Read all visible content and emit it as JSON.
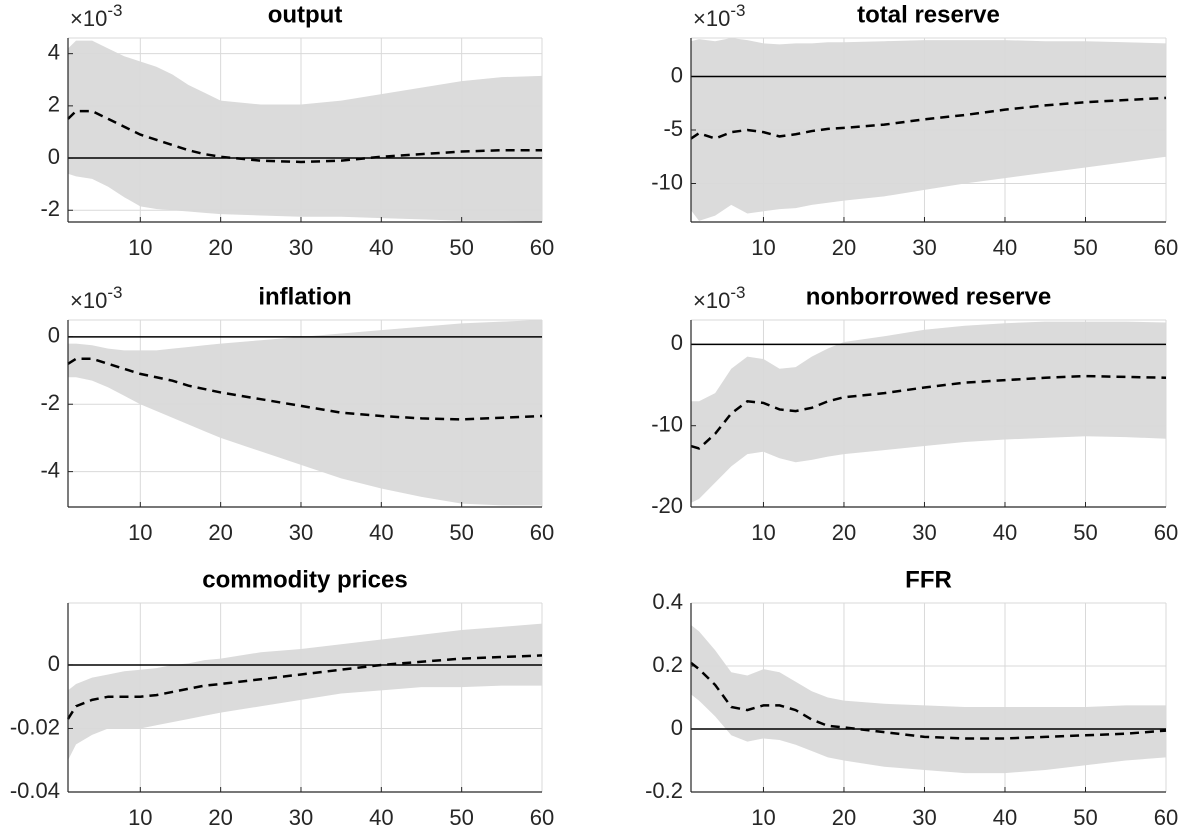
{
  "chart_data": [
    {
      "type": "line",
      "title": "output",
      "multiplier": {
        "base": "×10",
        "exponent": "-3"
      },
      "x": [
        1,
        2,
        4,
        6,
        8,
        10,
        12,
        14,
        16,
        18,
        20,
        25,
        30,
        35,
        40,
        45,
        50,
        55,
        60
      ],
      "values": [
        1.5,
        1.8,
        1.8,
        1.5,
        1.2,
        0.9,
        0.7,
        0.5,
        0.3,
        0.15,
        0.05,
        -0.1,
        -0.15,
        -0.1,
        0.05,
        0.15,
        0.25,
        0.3,
        0.3
      ],
      "upper": [
        4.2,
        4.5,
        4.5,
        4.2,
        3.9,
        3.7,
        3.5,
        3.2,
        2.8,
        2.5,
        2.2,
        2.05,
        2.05,
        2.2,
        2.45,
        2.7,
        2.95,
        3.1,
        3.15
      ],
      "lower": [
        -0.6,
        -0.7,
        -0.8,
        -1.1,
        -1.5,
        -1.85,
        -1.95,
        -2.0,
        -2.05,
        -2.1,
        -2.15,
        -2.2,
        -2.25,
        -2.25,
        -2.3,
        -2.35,
        -2.4,
        -2.4,
        -2.45
      ],
      "xlim": [
        1,
        60
      ],
      "xticks": [
        10,
        20,
        30,
        40,
        50,
        60
      ],
      "ylim": [
        -2.45,
        4.6
      ],
      "yticks": [
        -2,
        0,
        2,
        4
      ],
      "grid": true,
      "hline": 0,
      "color": "#000000",
      "line_style": "dashed",
      "band_color": "#dbdbdb"
    },
    {
      "type": "line",
      "title": "total reserve",
      "multiplier": {
        "base": "×10",
        "exponent": "-3"
      },
      "x": [
        1,
        2,
        4,
        6,
        8,
        10,
        12,
        14,
        16,
        18,
        20,
        25,
        30,
        35,
        40,
        45,
        50,
        55,
        60
      ],
      "values": [
        -5.8,
        -5.3,
        -5.8,
        -5.2,
        -5.0,
        -5.2,
        -5.6,
        -5.4,
        -5.1,
        -4.9,
        -4.8,
        -4.5,
        -4.0,
        -3.6,
        -3.1,
        -2.7,
        -2.4,
        -2.2,
        -2.0
      ],
      "upper": [
        3.3,
        3.5,
        3.3,
        3.6,
        3.4,
        3.1,
        3.0,
        3.1,
        3.1,
        3.2,
        3.2,
        3.3,
        3.4,
        3.4,
        3.4,
        3.3,
        3.3,
        3.2,
        3.1
      ],
      "lower": [
        -12.5,
        -13.5,
        -13.0,
        -12.0,
        -12.8,
        -12.6,
        -12.4,
        -12.3,
        -12.0,
        -11.8,
        -11.6,
        -11.2,
        -10.6,
        -10.0,
        -9.5,
        -9.0,
        -8.5,
        -8.0,
        -7.5
      ],
      "xlim": [
        1,
        60
      ],
      "xticks": [
        10,
        20,
        30,
        40,
        50,
        60
      ],
      "ylim": [
        -13.6,
        3.6
      ],
      "yticks": [
        -10,
        -5,
        0
      ],
      "grid": true,
      "hline": 0,
      "color": "#000000",
      "line_style": "dashed",
      "band_color": "#dbdbdb"
    },
    {
      "type": "line",
      "title": "inflation",
      "multiplier": {
        "base": "×10",
        "exponent": "-3"
      },
      "x": [
        1,
        2,
        4,
        6,
        8,
        10,
        12,
        14,
        16,
        18,
        20,
        25,
        30,
        35,
        40,
        45,
        50,
        55,
        60
      ],
      "values": [
        -0.8,
        -0.65,
        -0.65,
        -0.8,
        -0.95,
        -1.1,
        -1.2,
        -1.3,
        -1.45,
        -1.55,
        -1.65,
        -1.85,
        -2.05,
        -2.25,
        -2.35,
        -2.42,
        -2.45,
        -2.4,
        -2.35
      ],
      "upper": [
        -0.2,
        -0.2,
        -0.25,
        -0.35,
        -0.4,
        -0.4,
        -0.4,
        -0.35,
        -0.3,
        -0.25,
        -0.2,
        -0.1,
        0.0,
        0.1,
        0.2,
        0.3,
        0.4,
        0.45,
        0.5
      ],
      "lower": [
        -1.2,
        -1.2,
        -1.3,
        -1.5,
        -1.75,
        -2.0,
        -2.2,
        -2.4,
        -2.6,
        -2.8,
        -3.0,
        -3.4,
        -3.8,
        -4.2,
        -4.5,
        -4.75,
        -4.95,
        -5.0,
        -5.0
      ],
      "xlim": [
        1,
        60
      ],
      "xticks": [
        10,
        20,
        30,
        40,
        50,
        60
      ],
      "ylim": [
        -5.05,
        0.5
      ],
      "yticks": [
        -4,
        -2,
        0
      ],
      "grid": true,
      "hline": 0,
      "color": "#000000",
      "line_style": "dashed",
      "band_color": "#dbdbdb"
    },
    {
      "type": "line",
      "title": "nonborrowed reserve",
      "multiplier": {
        "base": "×10",
        "exponent": "-3"
      },
      "x": [
        1,
        2,
        4,
        6,
        8,
        10,
        12,
        14,
        16,
        18,
        20,
        25,
        30,
        35,
        40,
        45,
        50,
        55,
        60
      ],
      "values": [
        -12.5,
        -12.8,
        -11,
        -8.5,
        -7.0,
        -7.2,
        -8.0,
        -8.2,
        -7.8,
        -7.0,
        -6.5,
        -6.0,
        -5.3,
        -4.7,
        -4.4,
        -4.1,
        -3.9,
        -4.0,
        -4.1
      ],
      "upper": [
        -7,
        -7,
        -6,
        -3,
        -1.5,
        -1.8,
        -3,
        -2.8,
        -1.5,
        -0.5,
        0.3,
        1.0,
        1.8,
        2.3,
        2.6,
        2.8,
        2.8,
        2.8,
        2.7
      ],
      "lower": [
        -19.5,
        -19,
        -17,
        -15,
        -13.5,
        -13.2,
        -14,
        -14.5,
        -14.2,
        -13.8,
        -13.5,
        -13,
        -12.5,
        -12,
        -11.7,
        -11.5,
        -11.3,
        -11.4,
        -11.6
      ],
      "xlim": [
        1,
        60
      ],
      "xticks": [
        10,
        20,
        30,
        40,
        50,
        60
      ],
      "ylim": [
        -20,
        3
      ],
      "yticks": [
        -20,
        -10,
        0
      ],
      "grid": true,
      "hline": 0,
      "color": "#000000",
      "line_style": "dashed",
      "band_color": "#dbdbdb"
    },
    {
      "type": "line",
      "title": "commodity prices",
      "x": [
        1,
        2,
        4,
        6,
        8,
        10,
        12,
        14,
        16,
        18,
        20,
        25,
        30,
        35,
        40,
        45,
        50,
        55,
        60
      ],
      "values": [
        -0.017,
        -0.013,
        -0.011,
        -0.01,
        -0.01,
        -0.01,
        -0.0095,
        -0.0085,
        -0.0075,
        -0.0065,
        -0.006,
        -0.0045,
        -0.003,
        -0.0015,
        0.0,
        0.001,
        0.002,
        0.0025,
        0.003
      ],
      "upper": [
        -0.008,
        -0.006,
        -0.004,
        -0.003,
        -0.002,
        -0.0015,
        -0.001,
        0.0,
        0.0005,
        0.0015,
        0.002,
        0.004,
        0.005,
        0.0065,
        0.008,
        0.0095,
        0.011,
        0.012,
        0.013
      ],
      "lower": [
        -0.03,
        -0.025,
        -0.022,
        -0.02,
        -0.02,
        -0.02,
        -0.019,
        -0.018,
        -0.017,
        -0.016,
        -0.015,
        -0.013,
        -0.011,
        -0.009,
        -0.008,
        -0.007,
        -0.007,
        -0.0065,
        -0.0065
      ],
      "xlim": [
        1,
        60
      ],
      "xticks": [
        10,
        20,
        30,
        40,
        50,
        60
      ],
      "ylim": [
        -0.04,
        0.0195
      ],
      "yticks": [
        -0.04,
        -0.02,
        0
      ],
      "grid": true,
      "hline": 0,
      "color": "#000000",
      "line_style": "dashed",
      "band_color": "#dbdbdb"
    },
    {
      "type": "line",
      "title": "FFR",
      "x": [
        1,
        2,
        4,
        6,
        8,
        10,
        12,
        14,
        16,
        18,
        20,
        25,
        30,
        35,
        40,
        45,
        50,
        55,
        60
      ],
      "values": [
        0.21,
        0.19,
        0.14,
        0.07,
        0.06,
        0.075,
        0.075,
        0.06,
        0.03,
        0.01,
        0.005,
        -0.01,
        -0.025,
        -0.03,
        -0.03,
        -0.025,
        -0.02,
        -0.015,
        -0.005
      ],
      "upper": [
        0.33,
        0.31,
        0.25,
        0.18,
        0.17,
        0.19,
        0.18,
        0.15,
        0.12,
        0.1,
        0.09,
        0.08,
        0.075,
        0.07,
        0.07,
        0.07,
        0.07,
        0.075,
        0.075
      ],
      "lower": [
        0.11,
        0.09,
        0.04,
        -0.02,
        -0.04,
        -0.03,
        -0.035,
        -0.05,
        -0.07,
        -0.09,
        -0.1,
        -0.12,
        -0.13,
        -0.14,
        -0.14,
        -0.13,
        -0.115,
        -0.1,
        -0.09
      ],
      "xlim": [
        1,
        60
      ],
      "xticks": [
        10,
        20,
        30,
        40,
        50,
        60
      ],
      "ylim": [
        -0.2,
        0.4
      ],
      "yticks": [
        -0.2,
        0,
        0.2,
        0.4
      ],
      "grid": true,
      "hline": 0,
      "color": "#000000",
      "line_style": "dashed",
      "band_color": "#dbdbdb"
    }
  ]
}
